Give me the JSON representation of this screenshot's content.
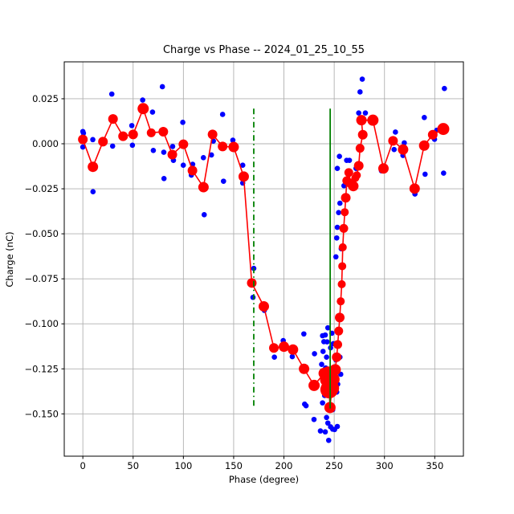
{
  "figure": {
    "kind": "matplotlib-style plot window"
  },
  "chart_data": {
    "type": "scatter",
    "title": "Charge vs Phase -- 2024_01_25_10_55",
    "xlabel": "Phase (degree)",
    "ylabel": "Charge (nC)",
    "xlim": [
      -18.5,
      378.5
    ],
    "ylim": [
      -0.1735,
      0.0455
    ],
    "xticks": [
      0,
      50,
      100,
      150,
      200,
      250,
      300,
      350
    ],
    "yticks": [
      0.025,
      0.0,
      -0.025,
      -0.05,
      -0.075,
      -0.1,
      -0.125,
      -0.15
    ],
    "grid": true,
    "grid_color": "#b0b0b0",
    "frame_color": "#000000",
    "background": "#ffffff",
    "legend": "none",
    "vlines": [
      {
        "x": 170,
        "style": "dashdot",
        "color": "#008000",
        "y_from": -0.147,
        "y_to": 0.0195
      },
      {
        "x": 246,
        "style": "solid",
        "color": "#008000",
        "y_from": -0.147,
        "y_to": 0.0195
      }
    ],
    "series": [
      {
        "name": "raw charge measurements",
        "plot": "scatter",
        "color": "#0000ff",
        "marker_radius": 3.3,
        "points": [
          [
            0,
            0.0068
          ],
          [
            0.6,
            0.0059
          ],
          [
            0,
            -0.0018
          ],
          [
            9.9,
            0.0023
          ],
          [
            10.1,
            -0.0266
          ],
          [
            28.8,
            0.0276
          ],
          [
            29.6,
            -0.0013
          ],
          [
            48.7,
            0.0101
          ],
          [
            49.3,
            -0.0008
          ],
          [
            59.5,
            0.0243
          ],
          [
            69.3,
            0.0176
          ],
          [
            70.1,
            -0.0037
          ],
          [
            79.1,
            0.0317
          ],
          [
            80.5,
            -0.0047
          ],
          [
            80.7,
            -0.0193
          ],
          [
            89.3,
            -0.0015
          ],
          [
            90.1,
            -0.0092
          ],
          [
            99.4,
            0.0119
          ],
          [
            99.9,
            -0.0119
          ],
          [
            107.9,
            -0.0174
          ],
          [
            109.2,
            -0.0114
          ],
          [
            119.9,
            -0.0077
          ],
          [
            120.7,
            -0.0394
          ],
          [
            127.9,
            -0.0062
          ],
          [
            129.8,
            0.0015
          ],
          [
            139,
            0.0163
          ],
          [
            139.9,
            -0.0208
          ],
          [
            149.2,
            0.002
          ],
          [
            159,
            -0.0119
          ],
          [
            159,
            -0.0218
          ],
          [
            170,
            -0.0692
          ],
          [
            169.2,
            -0.0853
          ],
          [
            180.5,
            -0.0925
          ],
          [
            190.5,
            -0.1185
          ],
          [
            199.3,
            -0.1093
          ],
          [
            208.3,
            -0.1182
          ],
          [
            219.8,
            -0.1056
          ],
          [
            220.6,
            -0.1446
          ],
          [
            222,
            -0.1455
          ],
          [
            229.9,
            -0.1531
          ],
          [
            230.4,
            -0.1166
          ],
          [
            236.3,
            -0.1595
          ],
          [
            237.5,
            -0.1225
          ],
          [
            238.4,
            -0.1066
          ],
          [
            238.4,
            -0.1439
          ],
          [
            238.9,
            -0.1153
          ],
          [
            239.7,
            -0.1099
          ],
          [
            240.5,
            -0.1398
          ],
          [
            241.1,
            -0.1062
          ],
          [
            241.1,
            -0.16
          ],
          [
            241.5,
            -0.1245
          ],
          [
            242.4,
            -0.1185
          ],
          [
            242.4,
            -0.152
          ],
          [
            242.9,
            -0.11
          ],
          [
            243.7,
            -0.1022
          ],
          [
            243.7,
            -0.1551
          ],
          [
            244.5,
            -0.1647
          ],
          [
            244.5,
            -0.1305
          ],
          [
            245,
            -0.1475
          ],
          [
            246.4,
            -0.1133
          ],
          [
            246.4,
            -0.1572
          ],
          [
            246.8,
            -0.1295
          ],
          [
            247.7,
            -0.1052
          ],
          [
            248.5,
            -0.1477
          ],
          [
            248.5,
            -0.1585
          ],
          [
            249.1,
            -0.111
          ],
          [
            249.8,
            -0.1265
          ],
          [
            250.4,
            -0.1372
          ],
          [
            250.4,
            -0.1587
          ],
          [
            251.7,
            -0.12
          ],
          [
            251.7,
            -0.0628
          ],
          [
            252.5,
            -0.1379
          ],
          [
            252.5,
            -0.0523
          ],
          [
            253.1,
            -0.0137
          ],
          [
            253.1,
            -0.0464
          ],
          [
            253.1,
            -0.157
          ],
          [
            253.5,
            -0.1335
          ],
          [
            254.4,
            -0.0382
          ],
          [
            255.2,
            -0.007
          ],
          [
            255.7,
            -0.033
          ],
          [
            255.7,
            -0.1185
          ],
          [
            256.5,
            -0.128
          ],
          [
            257,
            -0.0583
          ],
          [
            259.7,
            -0.0233
          ],
          [
            259.7,
            -0.0464
          ],
          [
            262.4,
            -0.0092
          ],
          [
            265.1,
            -0.0092
          ],
          [
            271.7,
            -0.0137
          ],
          [
            274.4,
            0.0171
          ],
          [
            275.7,
            0.0288
          ],
          [
            277.9,
            0.0359
          ],
          [
            281,
            0.0171
          ],
          [
            297,
            -0.015
          ],
          [
            309.6,
            -0.0032
          ],
          [
            310.9,
            0.0065
          ],
          [
            318.4,
            -0.0065
          ],
          [
            319.7,
            0.0005
          ],
          [
            330.3,
            -0.0279
          ],
          [
            339.6,
            0.0146
          ],
          [
            340.4,
            -0.0169
          ],
          [
            349.8,
            0.0025
          ],
          [
            352,
            0.0075
          ],
          [
            358.8,
            -0.0163
          ],
          [
            359.6,
            0.0307
          ]
        ]
      },
      {
        "name": "binned average (red line, marker size ~ bin count)",
        "plot": "line+markers",
        "color": "#ff0000",
        "line_width": 1.6,
        "points_format": [
          "phase_deg",
          "charge_nC",
          "marker_radius_px"
        ],
        "points": [
          [
            0,
            0.0024,
            6
          ],
          [
            10,
            -0.0128,
            6.5
          ],
          [
            20,
            0.0012,
            6
          ],
          [
            30,
            0.0138,
            6
          ],
          [
            40,
            0.0042,
            6
          ],
          [
            50,
            0.0052,
            6
          ],
          [
            60,
            0.0195,
            7
          ],
          [
            68,
            0.0061,
            5.5
          ],
          [
            80,
            0.0067,
            6
          ],
          [
            89,
            -0.006,
            6
          ],
          [
            100,
            -0.0003,
            6
          ],
          [
            109,
            -0.0149,
            6
          ],
          [
            120,
            -0.0241,
            6.5
          ],
          [
            129,
            0.0052,
            6
          ],
          [
            139,
            -0.0015,
            6
          ],
          [
            150,
            -0.0018,
            6.5
          ],
          [
            160,
            -0.0182,
            6.5
          ],
          [
            168,
            -0.0773,
            6
          ],
          [
            180,
            -0.0903,
            6.5
          ],
          [
            190,
            -0.1134,
            6
          ],
          [
            200,
            -0.1127,
            6.5
          ],
          [
            209,
            -0.1143,
            6.5
          ],
          [
            220,
            -0.125,
            6.5
          ],
          [
            230,
            -0.1342,
            7
          ],
          [
            240,
            -0.1275,
            7
          ],
          [
            242.4,
            -0.1312,
            8
          ],
          [
            243.7,
            -0.1268,
            7
          ],
          [
            245,
            -0.1365,
            11
          ],
          [
            245.8,
            -0.1465,
            7
          ],
          [
            247.7,
            -0.1357,
            9
          ],
          [
            249,
            -0.1308,
            8
          ],
          [
            251,
            -0.1255,
            7
          ],
          [
            252.5,
            -0.1185,
            6
          ],
          [
            253.5,
            -0.1115,
            5.5
          ],
          [
            254.5,
            -0.104,
            5.5
          ],
          [
            255.5,
            -0.0965,
            6
          ],
          [
            256.5,
            -0.0875,
            5
          ],
          [
            257.5,
            -0.078,
            5
          ],
          [
            258,
            -0.068,
            5
          ],
          [
            258.5,
            -0.0575,
            5
          ],
          [
            259.5,
            -0.047,
            5.5
          ],
          [
            260.5,
            -0.038,
            5
          ],
          [
            261.5,
            -0.03,
            6
          ],
          [
            262.5,
            -0.0205,
            5.5
          ],
          [
            264.5,
            -0.016,
            5.5
          ],
          [
            266.5,
            -0.022,
            6
          ],
          [
            269,
            -0.0235,
            6.5
          ],
          [
            271,
            -0.019,
            5
          ],
          [
            272.5,
            -0.0175,
            5
          ],
          [
            274.4,
            -0.0122,
            6
          ],
          [
            275.7,
            -0.0025,
            5.5
          ],
          [
            278.4,
            0.005,
            6
          ],
          [
            277.1,
            0.0131,
            6.5
          ],
          [
            288.5,
            0.0131,
            7
          ],
          [
            299,
            -0.0137,
            6.5
          ],
          [
            308.5,
            0.0016,
            6
          ],
          [
            318.5,
            -0.0032,
            6.5
          ],
          [
            330,
            -0.0249,
            6.5
          ],
          [
            339.5,
            -0.001,
            6.5
          ],
          [
            348,
            0.005,
            6
          ],
          [
            358.5,
            0.0082,
            7.5
          ]
        ]
      }
    ]
  }
}
